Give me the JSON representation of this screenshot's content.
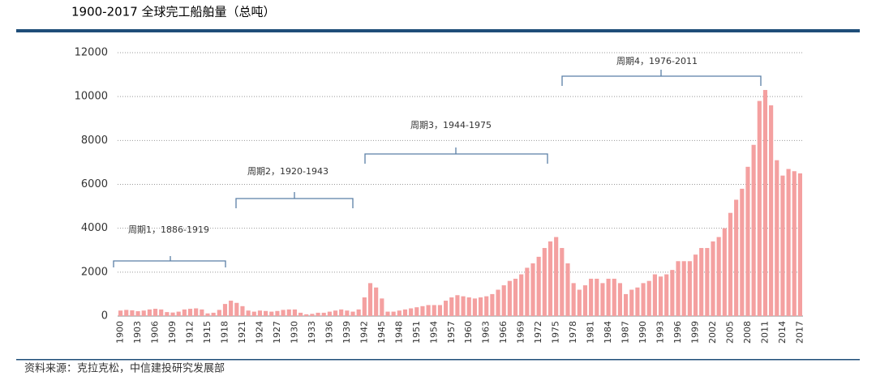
{
  "chart_data": {
    "type": "bar",
    "title": "1900-2017 全球完工船舶量（总吨）",
    "source": "资料来源：克拉克松，中信建投研究发展部",
    "annotations": [
      "周期1，1886-1919",
      "周期2，1920-1943",
      "周期3，1944-1975",
      "周期4，1976-2011"
    ],
    "categories": [
      "1900",
      null,
      null,
      "1903",
      null,
      null,
      "1906",
      null,
      null,
      "1909",
      null,
      null,
      "1912",
      null,
      null,
      "1915",
      null,
      null,
      "1918",
      null,
      null,
      "1921",
      null,
      null,
      "1924",
      null,
      null,
      "1927",
      null,
      null,
      "1930",
      null,
      null,
      "1933",
      null,
      null,
      "1936",
      null,
      null,
      "1939",
      null,
      null,
      "1942",
      null,
      null,
      "1945",
      null,
      null,
      "1948",
      null,
      null,
      "1951",
      null,
      null,
      "1954",
      null,
      null,
      "1957",
      null,
      null,
      "1960",
      null,
      null,
      "1963",
      null,
      null,
      "1966",
      null,
      null,
      "1969",
      null,
      null,
      "1972",
      null,
      null,
      "1975",
      null,
      null,
      "1978",
      null,
      null,
      "1981",
      null,
      null,
      "1984",
      null,
      null,
      "1987",
      null,
      null,
      "1990",
      null,
      null,
      "1993",
      null,
      null,
      "1996",
      null,
      null,
      "1999",
      null,
      null,
      "2002",
      null,
      null,
      "2005",
      null,
      null,
      "2008",
      null,
      null,
      "2011",
      null,
      null,
      "2014",
      null,
      null,
      "2017"
    ],
    "values": [
      250,
      280,
      260,
      220,
      250,
      300,
      330,
      300,
      180,
      160,
      200,
      300,
      330,
      350,
      300,
      120,
      150,
      280,
      550,
      700,
      600,
      450,
      250,
      200,
      250,
      230,
      200,
      230,
      280,
      300,
      300,
      150,
      80,
      100,
      150,
      150,
      200,
      250,
      300,
      250,
      200,
      300,
      850,
      1500,
      1300,
      800,
      200,
      200,
      250,
      300,
      350,
      400,
      450,
      500,
      500,
      500,
      700,
      850,
      950,
      900,
      850,
      800,
      850,
      900,
      1000,
      1200,
      1400,
      1600,
      1700,
      1900,
      2200,
      2400,
      2700,
      3100,
      3400,
      3600,
      3100,
      2400,
      1500,
      1200,
      1400,
      1700,
      1700,
      1500,
      1700,
      1700,
      1500,
      1000,
      1200,
      1300,
      1500,
      1600,
      1900,
      1800,
      1900,
      2100,
      2500,
      2500,
      2500,
      2800,
      3100,
      3100,
      3400,
      3600,
      4000,
      4700,
      5300,
      5800,
      6800,
      7800,
      9800,
      10300,
      9600,
      7100,
      6400,
      6700,
      6600,
      6500
    ],
    "color": "#f4a0a0",
    "ylim": [
      0,
      12000
    ],
    "yticks": [
      0,
      2000,
      4000,
      6000,
      8000,
      10000,
      12000
    ],
    "grid": true
  }
}
